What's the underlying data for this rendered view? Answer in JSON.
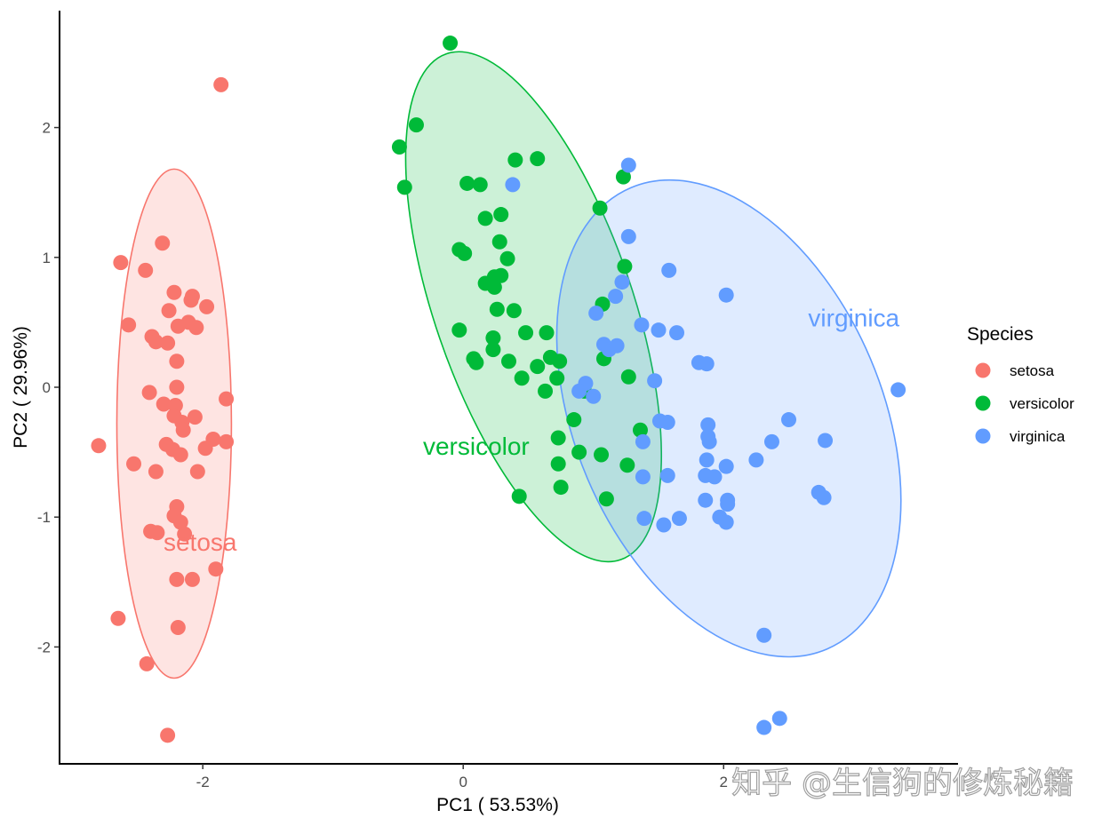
{
  "colors": {
    "setosa": "#F8766D",
    "versicolor": "#00BA38",
    "virginica": "#619CFF"
  },
  "watermark": "知乎 @生信狗的修炼秘籍",
  "chart_data": {
    "type": "scatter",
    "title": "",
    "xlabel": "PC1 ( 53.53%)",
    "ylabel": "PC2 ( 29.96%)",
    "xlim": [
      -3.1,
      3.8
    ],
    "ylim": [
      -2.9,
      2.9
    ],
    "xticks": [
      -2,
      0,
      2
    ],
    "xtick_labels": [
      "-2",
      "0",
      "2"
    ],
    "yticks": [
      -2,
      -1,
      0,
      1,
      2
    ],
    "ytick_labels": [
      "-2",
      "-1",
      "0",
      "1",
      "2"
    ],
    "grid": false,
    "legend": {
      "title": "Species",
      "position": "right",
      "entries": [
        "setosa",
        "versicolor",
        "virginica"
      ]
    },
    "ellipses": [
      {
        "name": "setosa",
        "cx": -2.22,
        "cy": -0.28,
        "rx": 0.44,
        "ry": 1.96,
        "angle": 0
      },
      {
        "name": "versicolor",
        "cx": 0.54,
        "cy": 0.62,
        "rx": 0.76,
        "ry": 2.06,
        "angle": -19
      },
      {
        "name": "virginica",
        "cx": 2.04,
        "cy": -0.24,
        "rx": 1.18,
        "ry": 1.93,
        "angle": -23
      }
    ],
    "group_labels": [
      {
        "name": "setosa",
        "text": "setosa",
        "x": -2.02,
        "y": -1.26
      },
      {
        "name": "versicolor",
        "text": "versicolor",
        "x": 0.1,
        "y": -0.52
      },
      {
        "name": "virginica",
        "text": "virginica",
        "x": 3.0,
        "y": 0.47
      }
    ],
    "series": [
      {
        "name": "setosa",
        "points": [
          [
            -1.86,
            2.33
          ],
          [
            -2.31,
            1.11
          ],
          [
            -2.63,
            0.96
          ],
          [
            -2.44,
            0.9
          ],
          [
            -2.22,
            0.73
          ],
          [
            -2.08,
            0.7
          ],
          [
            -2.09,
            0.67
          ],
          [
            -2.26,
            0.59
          ],
          [
            -1.97,
            0.62
          ],
          [
            -2.57,
            0.48
          ],
          [
            -2.11,
            0.5
          ],
          [
            -2.19,
            0.47
          ],
          [
            -2.05,
            0.46
          ],
          [
            -2.39,
            0.39
          ],
          [
            -2.36,
            0.35
          ],
          [
            -2.27,
            0.34
          ],
          [
            -2.2,
            0.2
          ],
          [
            -2.41,
            -0.04
          ],
          [
            -2.2,
            0.0
          ],
          [
            -1.82,
            -0.09
          ],
          [
            -2.3,
            -0.13
          ],
          [
            -2.21,
            -0.14
          ],
          [
            -2.22,
            -0.22
          ],
          [
            -2.06,
            -0.23
          ],
          [
            -2.16,
            -0.27
          ],
          [
            -2.15,
            -0.33
          ],
          [
            -1.92,
            -0.4
          ],
          [
            -1.82,
            -0.42
          ],
          [
            -1.98,
            -0.47
          ],
          [
            -2.28,
            -0.44
          ],
          [
            -2.23,
            -0.48
          ],
          [
            -2.17,
            -0.52
          ],
          [
            -2.8,
            -0.45
          ],
          [
            -2.53,
            -0.59
          ],
          [
            -2.04,
            -0.65
          ],
          [
            -2.36,
            -0.65
          ],
          [
            -2.2,
            -0.92
          ],
          [
            -2.22,
            -0.99
          ],
          [
            -2.17,
            -1.04
          ],
          [
            -2.4,
            -1.11
          ],
          [
            -2.35,
            -1.12
          ],
          [
            -2.14,
            -1.13
          ],
          [
            -2.2,
            -1.48
          ],
          [
            -2.08,
            -1.48
          ],
          [
            -1.9,
            -1.4
          ],
          [
            -2.65,
            -1.78
          ],
          [
            -2.19,
            -1.85
          ],
          [
            -2.43,
            -2.13
          ],
          [
            -2.27,
            -2.68
          ]
        ]
      },
      {
        "name": "versicolor",
        "points": [
          [
            -0.1,
            2.65
          ],
          [
            -0.36,
            2.02
          ],
          [
            -0.49,
            1.85
          ],
          [
            -0.45,
            1.54
          ],
          [
            0.4,
            1.75
          ],
          [
            0.57,
            1.76
          ],
          [
            0.03,
            1.57
          ],
          [
            0.13,
            1.56
          ],
          [
            1.23,
            1.62
          ],
          [
            1.05,
            1.38
          ],
          [
            0.17,
            1.3
          ],
          [
            0.29,
            1.33
          ],
          [
            -0.03,
            1.06
          ],
          [
            0.01,
            1.03
          ],
          [
            0.28,
            1.12
          ],
          [
            0.34,
            0.99
          ],
          [
            0.29,
            0.86
          ],
          [
            0.24,
            0.85
          ],
          [
            0.17,
            0.8
          ],
          [
            0.24,
            0.77
          ],
          [
            1.24,
            0.93
          ],
          [
            1.07,
            0.64
          ],
          [
            0.26,
            0.6
          ],
          [
            0.39,
            0.59
          ],
          [
            -0.03,
            0.44
          ],
          [
            0.48,
            0.42
          ],
          [
            0.64,
            0.42
          ],
          [
            0.23,
            0.38
          ],
          [
            0.23,
            0.29
          ],
          [
            0.08,
            0.22
          ],
          [
            0.35,
            0.2
          ],
          [
            0.1,
            0.19
          ],
          [
            0.57,
            0.16
          ],
          [
            0.67,
            0.23
          ],
          [
            0.74,
            0.2
          ],
          [
            1.08,
            0.22
          ],
          [
            0.45,
            0.07
          ],
          [
            0.72,
            0.07
          ],
          [
            1.27,
            0.08
          ],
          [
            0.63,
            -0.03
          ],
          [
            0.93,
            -0.03
          ],
          [
            0.85,
            -0.25
          ],
          [
            1.36,
            -0.33
          ],
          [
            0.73,
            -0.39
          ],
          [
            0.73,
            -0.59
          ],
          [
            0.89,
            -0.5
          ],
          [
            1.06,
            -0.52
          ],
          [
            1.26,
            -0.6
          ],
          [
            0.75,
            -0.77
          ],
          [
            1.1,
            -0.86
          ],
          [
            0.43,
            -0.84
          ]
        ]
      },
      {
        "name": "virginica",
        "points": [
          [
            1.27,
            1.71
          ],
          [
            0.38,
            1.56
          ],
          [
            1.27,
            1.16
          ],
          [
            1.58,
            0.9
          ],
          [
            1.22,
            0.81
          ],
          [
            2.02,
            0.71
          ],
          [
            1.17,
            0.7
          ],
          [
            1.02,
            0.57
          ],
          [
            1.37,
            0.48
          ],
          [
            1.5,
            0.44
          ],
          [
            1.64,
            0.42
          ],
          [
            1.08,
            0.33
          ],
          [
            1.12,
            0.29
          ],
          [
            1.18,
            0.32
          ],
          [
            1.81,
            0.19
          ],
          [
            1.87,
            0.18
          ],
          [
            1.47,
            0.05
          ],
          [
            0.94,
            0.03
          ],
          [
            0.89,
            -0.03
          ],
          [
            1.0,
            -0.07
          ],
          [
            2.5,
            -0.25
          ],
          [
            1.51,
            -0.26
          ],
          [
            1.57,
            -0.27
          ],
          [
            1.88,
            -0.29
          ],
          [
            1.88,
            -0.38
          ],
          [
            1.89,
            -0.42
          ],
          [
            2.37,
            -0.42
          ],
          [
            2.78,
            -0.41
          ],
          [
            1.38,
            -0.42
          ],
          [
            2.25,
            -0.56
          ],
          [
            1.87,
            -0.56
          ],
          [
            2.02,
            -0.61
          ],
          [
            1.57,
            -0.68
          ],
          [
            1.86,
            -0.68
          ],
          [
            1.93,
            -0.69
          ],
          [
            1.38,
            -0.69
          ],
          [
            2.73,
            -0.81
          ],
          [
            2.77,
            -0.85
          ],
          [
            2.03,
            -0.87
          ],
          [
            2.03,
            -0.9
          ],
          [
            1.86,
            -0.87
          ],
          [
            1.97,
            -1.0
          ],
          [
            2.02,
            -1.04
          ],
          [
            1.66,
            -1.01
          ],
          [
            1.54,
            -1.06
          ],
          [
            1.39,
            -1.01
          ],
          [
            3.34,
            -0.02
          ],
          [
            2.31,
            -1.91
          ],
          [
            2.43,
            -2.55
          ],
          [
            2.31,
            -2.62
          ]
        ]
      }
    ]
  }
}
